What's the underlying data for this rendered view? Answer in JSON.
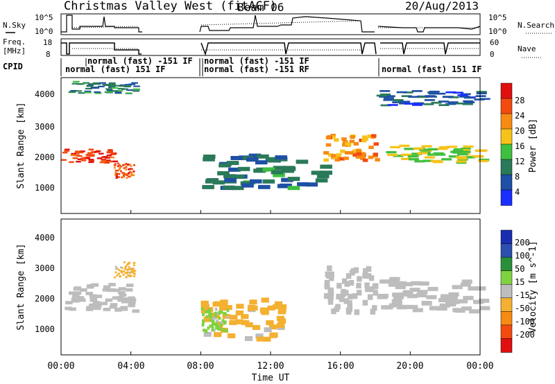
{
  "header": {
    "title": "Christmas Valley West (fitACF)",
    "beam": "Beam 06",
    "date": "20/Aug/2013"
  },
  "strips": {
    "nsky_label": "N.Sky",
    "nsearch_label": "N.Search",
    "nsky_ticks": [
      "10^5",
      "10^0"
    ],
    "nsearch_ticks": [
      "10^5",
      "10^0"
    ],
    "freq_label_1": "Freq.",
    "freq_label_2": "[MHz]",
    "freq_ticks": [
      "18",
      "8"
    ],
    "nave_label": "Nave",
    "nave_ticks": [
      "60",
      "0"
    ],
    "cpid_label": "CPID",
    "cpid_segments": [
      "normal (fast) -151 IF",
      "normal (fast) 151 IF",
      "normal (fast) -151 IF",
      "normal (fast) -151 RF",
      "normal (fast) 151 IF"
    ]
  },
  "colors": {
    "power": [
      "#1a2eff",
      "#1f4fa6",
      "#2a7a5a",
      "#3fbf3f",
      "#f7c31a",
      "#f78a12",
      "#f24a0f",
      "#e01010"
    ],
    "velocity": [
      "#e01010",
      "#f24a0f",
      "#f78a12",
      "#f4b030",
      "#bdbdbd",
      "#bdbdbd",
      "#7fd23f",
      "#2a8f3a",
      "#2c4fb0",
      "#1a2eb0"
    ]
  },
  "chart_data": [
    {
      "type": "heatmap",
      "name": "power",
      "ylabel": "Slant Range [km]",
      "yticks": [
        "4000",
        "3000",
        "2000",
        "1000"
      ],
      "ylim": [
        0,
        4500
      ],
      "xlim": [
        0,
        24
      ],
      "colorbar_label": "Power [dB]",
      "colorbar_ticks": [
        "28",
        "24",
        "20",
        "16",
        "12",
        "8",
        "4"
      ],
      "features": [
        {
          "t": [
            0.0,
            3.0
          ],
          "range_km": [
            1700,
            2150
          ],
          "level_db": 26
        },
        {
          "t": [
            3.0,
            4.2
          ],
          "range_km": [
            1200,
            1700
          ],
          "level_db": 24
        },
        {
          "t": [
            0.3,
            4.2
          ],
          "range_km": [
            4000,
            4400
          ],
          "level_db": 10
        },
        {
          "t": [
            8.0,
            15.0
          ],
          "range_km": [
            900,
            2000
          ],
          "level_db": 10
        },
        {
          "t": [
            15.0,
            18.0
          ],
          "range_km": [
            1800,
            2700
          ],
          "level_db": 20
        },
        {
          "t": [
            18.0,
            24.0
          ],
          "range_km": [
            1700,
            2300
          ],
          "level_db": 16
        },
        {
          "t": [
            18.0,
            24.0
          ],
          "range_km": [
            3600,
            4100
          ],
          "level_db": 8
        }
      ]
    },
    {
      "type": "heatmap",
      "name": "velocity",
      "ylabel": "Slant Range [km]",
      "yticks": [
        "4000",
        "3000",
        "2000",
        "1000"
      ],
      "ylim": [
        0,
        4500
      ],
      "xlim": [
        0,
        24
      ],
      "colorbar_label": "Velocity [m s^-1]",
      "colorbar_ticks": [
        "200",
        "100",
        "50",
        "15",
        "-15",
        "-50",
        "-100",
        "-200"
      ],
      "features": [
        {
          "t": [
            0.0,
            4.2
          ],
          "range_km": [
            1500,
            2400
          ],
          "velocity": 0
        },
        {
          "t": [
            3.0,
            4.2
          ],
          "range_km": [
            2600,
            3100
          ],
          "velocity": -60
        },
        {
          "t": [
            8.0,
            12.5
          ],
          "range_km": [
            600,
            1900
          ],
          "velocity": -60
        },
        {
          "t": [
            8.0,
            9.5
          ],
          "range_km": [
            800,
            1600
          ],
          "velocity": 60
        },
        {
          "t": [
            15.0,
            18.0
          ],
          "range_km": [
            1500,
            3000
          ],
          "velocity": 0
        },
        {
          "t": [
            18.0,
            24.0
          ],
          "range_km": [
            1500,
            2600
          ],
          "velocity": 0
        }
      ]
    }
  ],
  "x_axis": {
    "ticks": [
      "00:00",
      "04:00",
      "08:00",
      "12:00",
      "16:00",
      "20:00",
      "00:00"
    ],
    "label": "Time UT"
  }
}
